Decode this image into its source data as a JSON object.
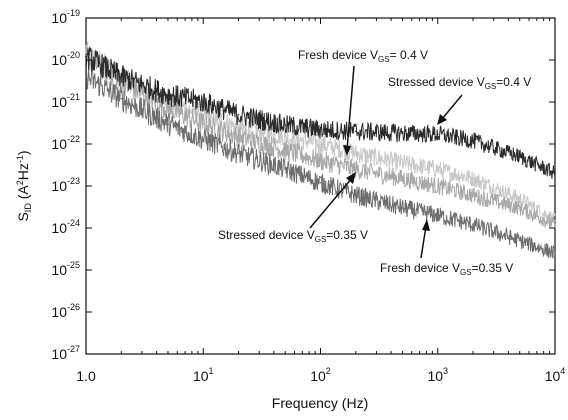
{
  "chart_data": {
    "type": "line",
    "xscale": "log",
    "yscale": "log",
    "xlim": [
      1,
      10000
    ],
    "ylim": [
      1e-27,
      1e-19
    ],
    "grid": false,
    "legend": "none",
    "xlabel": "Frequency (Hz)",
    "ylabel": {
      "main": "S",
      "sub": "ID",
      "unit_open": " (A",
      "unit_sup": "2",
      "unit_mid": "Hz",
      "unit_sup2": "-1",
      "unit_close": ")"
    },
    "xticks": [
      {
        "value": 1,
        "label": "1.0"
      },
      {
        "value": 10,
        "label": "10",
        "sup": "1"
      },
      {
        "value": 100,
        "label": "10",
        "sup": "2"
      },
      {
        "value": 1000,
        "label": "10",
        "sup": "3"
      },
      {
        "value": 10000,
        "label": "10",
        "sup": "4"
      }
    ],
    "yticks": [
      {
        "value": 1e-19,
        "label": "10",
        "sup": "-19"
      },
      {
        "value": 1e-20,
        "label": "10",
        "sup": "-20"
      },
      {
        "value": 1e-21,
        "label": "10",
        "sup": "-21"
      },
      {
        "value": 1e-22,
        "label": "10",
        "sup": "-22"
      },
      {
        "value": 1e-23,
        "label": "10",
        "sup": "-23"
      },
      {
        "value": 1e-24,
        "label": "10",
        "sup": "-24"
      },
      {
        "value": 1e-25,
        "label": "10",
        "sup": "-25"
      },
      {
        "value": 1e-26,
        "label": "10",
        "sup": "-26"
      },
      {
        "value": 1e-27,
        "label": "10",
        "sup": "-27"
      }
    ],
    "series": [
      {
        "color": "#2a2a2a",
        "points": [
          [
            1,
            1.2e-20
          ],
          [
            2,
            4e-21
          ],
          [
            5,
            1.5e-21
          ],
          [
            10,
            1e-21
          ],
          [
            20,
            5e-22
          ],
          [
            50,
            2.8e-22
          ],
          [
            100,
            2.2e-22
          ],
          [
            200,
            2e-22
          ],
          [
            500,
            1.8e-22
          ],
          [
            1000,
            1.7e-22
          ],
          [
            2000,
            1.2e-22
          ],
          [
            5000,
            5e-23
          ],
          [
            10000,
            2e-23
          ]
        ]
      },
      {
        "color": "#c8c8c8",
        "points": [
          [
            1,
            1.5e-20
          ],
          [
            2,
            4e-21
          ],
          [
            5,
            1e-21
          ],
          [
            10,
            5e-22
          ],
          [
            20,
            2.5e-22
          ],
          [
            50,
            1.5e-22
          ],
          [
            100,
            1e-22
          ],
          [
            200,
            6e-23
          ],
          [
            500,
            3.5e-23
          ],
          [
            1000,
            2.5e-23
          ],
          [
            2000,
            1.5e-23
          ],
          [
            5000,
            5e-24
          ],
          [
            10000,
            1.5e-24
          ]
        ]
      },
      {
        "color": "#a8a8a8",
        "points": [
          [
            1,
            1.2e-20
          ],
          [
            2,
            3e-21
          ],
          [
            5,
            7e-22
          ],
          [
            10,
            3e-22
          ],
          [
            20,
            1.5e-22
          ],
          [
            50,
            7e-23
          ],
          [
            100,
            4e-23
          ],
          [
            200,
            2.5e-23
          ],
          [
            500,
            1.5e-23
          ],
          [
            1000,
            1e-23
          ],
          [
            2000,
            6e-24
          ],
          [
            5000,
            3e-24
          ],
          [
            10000,
            1.2e-24
          ]
        ]
      },
      {
        "color": "#6e6e6e",
        "points": [
          [
            1,
            4e-21
          ],
          [
            2,
            1.2e-21
          ],
          [
            5,
            3e-22
          ],
          [
            10,
            1.3e-22
          ],
          [
            20,
            6e-23
          ],
          [
            50,
            2.5e-23
          ],
          [
            100,
            1.2e-23
          ],
          [
            200,
            6e-24
          ],
          [
            500,
            3e-24
          ],
          [
            1000,
            2e-24
          ],
          [
            2000,
            1.2e-24
          ],
          [
            5000,
            5e-25
          ],
          [
            10000,
            2.5e-25
          ]
        ]
      }
    ],
    "annotations": [
      {
        "text": "Fresh device V",
        "sub": "GS",
        "text2": "= 0.4 V"
      },
      {
        "text": "Stressed device V",
        "sub": "GS",
        "text2": "=0.4 V"
      },
      {
        "text": "Stressed device V",
        "sub": "GS",
        "text2": "=0.35 V"
      },
      {
        "text": "Fresh device V",
        "sub": "GS",
        "text2": "=0.35 V"
      }
    ]
  }
}
